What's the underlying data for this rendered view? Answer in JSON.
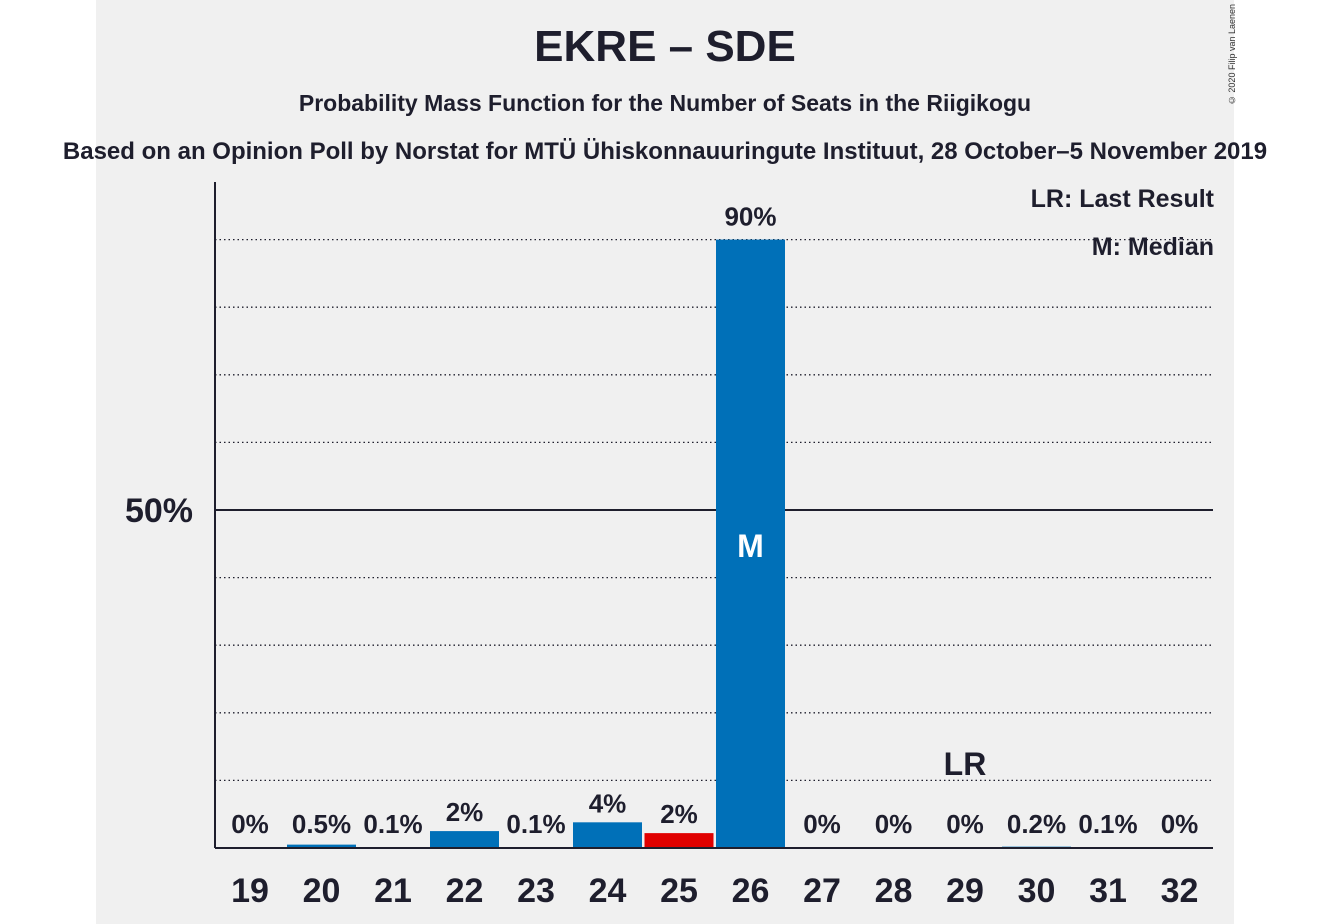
{
  "title": "EKRE – SDE",
  "subtitle": "Probability Mass Function for the Number of Seats in the Riigikogu",
  "source": "Based on an Opinion Poll by Norstat for MTÜ Ühiskonnauuringute Instituut, 28 October–5 November 2019",
  "copyright": "© 2020 Filip van Laenen",
  "legend": {
    "last_result": "LR: Last Result",
    "median": "M: Median"
  },
  "colors": {
    "bar": "#0070b8",
    "last_result_bar": "#e00000",
    "text": "#1e1e2d",
    "background": "#f0f0f0"
  },
  "chart_data": {
    "type": "bar",
    "categories": [
      "19",
      "20",
      "21",
      "22",
      "23",
      "24",
      "25",
      "26",
      "27",
      "28",
      "29",
      "30",
      "31",
      "32"
    ],
    "values": [
      0,
      0.5,
      0.1,
      2.5,
      0.1,
      3.8,
      2.2,
      90,
      0,
      0,
      0,
      0.2,
      0.1,
      0
    ],
    "labels": [
      "0%",
      "0.5%",
      "0.1%",
      "2%",
      "0.1%",
      "4%",
      "2%",
      "90%",
      "0%",
      "0%",
      "0%",
      "0.2%",
      "0.1%",
      "0%"
    ],
    "ylim": [
      0,
      100
    ],
    "yticks": [
      {
        "value": 50,
        "label": "50%"
      }
    ],
    "gridlines": [
      10,
      20,
      30,
      40,
      60,
      70,
      80,
      90
    ],
    "median": {
      "category": "26",
      "label": "M"
    },
    "last_result": {
      "category": "29",
      "label": "LR"
    },
    "highlight_category": "25",
    "grid": true,
    "legend_position": "top-right"
  }
}
